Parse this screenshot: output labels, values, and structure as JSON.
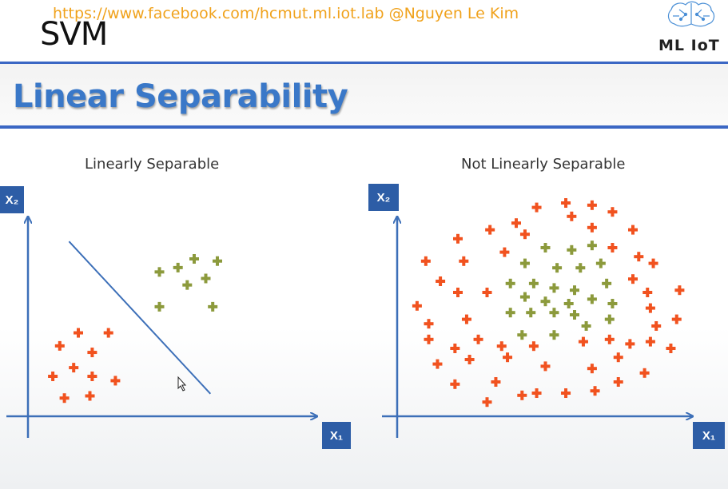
{
  "header": {
    "url_text": "https://www.facebook.com/hcmut.ml.iot.lab @Nguyen Le Kim",
    "section_label": "SVM",
    "logo_text": "ML IoT"
  },
  "slide": {
    "title": "Linear Separability"
  },
  "panels": [
    {
      "title": "Linearly Separable",
      "x_label": "X₁",
      "y_label": "X₂"
    },
    {
      "title": "Not Linearly Separable",
      "x_label": "X₁",
      "y_label": "X₂"
    }
  ],
  "colors": {
    "accent_blue": "#3b67c4",
    "class_a": "#f1521f",
    "class_b": "#8c9a3c"
  },
  "chart_data": [
    {
      "type": "scatter",
      "title": "Linearly Separable",
      "xlabel": "X₁",
      "ylabel": "X₂",
      "series": [
        {
          "name": "",
          "marker": "plus",
          "color": "#f1521f",
          "points": [
            [
              2.0,
              3.8
            ],
            [
              3.3,
              3.8
            ],
            [
              1.2,
              3.2
            ],
            [
              2.6,
              2.9
            ],
            [
              1.8,
              2.2
            ],
            [
              0.9,
              1.8
            ],
            [
              2.6,
              1.8
            ],
            [
              3.6,
              1.6
            ],
            [
              1.4,
              0.8
            ],
            [
              2.5,
              0.9
            ]
          ]
        },
        {
          "name": "",
          "marker": "plus",
          "color": "#8c9a3c",
          "points": [
            [
              5.5,
              6.6
            ],
            [
              6.3,
              6.8
            ],
            [
              7.0,
              7.2
            ],
            [
              8.0,
              7.1
            ],
            [
              6.7,
              6.0
            ],
            [
              7.5,
              6.3
            ],
            [
              5.5,
              5.0
            ],
            [
              7.8,
              5.0
            ]
          ]
        }
      ],
      "separator": [
        [
          1.6,
          8.0
        ],
        [
          7.7,
          1.0
        ]
      ],
      "xlim": [
        0,
        10
      ],
      "ylim": [
        0,
        9
      ]
    },
    {
      "type": "scatter",
      "title": "Not Linearly Separable",
      "xlabel": "X₁",
      "ylabel": "X₂",
      "series": [
        {
          "name": "",
          "marker": "plus",
          "color": "#f1521f",
          "points": [
            [
              4.7,
              9.3
            ],
            [
              5.7,
              9.5
            ],
            [
              6.6,
              9.4
            ],
            [
              7.3,
              9.1
            ],
            [
              4.0,
              8.6
            ],
            [
              5.9,
              8.9
            ],
            [
              6.6,
              8.4
            ],
            [
              3.1,
              8.3
            ],
            [
              4.3,
              8.1
            ],
            [
              8.0,
              8.3
            ],
            [
              2.0,
              7.9
            ],
            [
              3.6,
              7.3
            ],
            [
              7.3,
              7.5
            ],
            [
              8.2,
              7.1
            ],
            [
              0.9,
              6.9
            ],
            [
              2.2,
              6.9
            ],
            [
              8.7,
              6.8
            ],
            [
              1.4,
              6.0
            ],
            [
              2.0,
              5.5
            ],
            [
              3.0,
              5.5
            ],
            [
              8.0,
              6.1
            ],
            [
              8.5,
              5.5
            ],
            [
              9.6,
              5.6
            ],
            [
              0.6,
              4.9
            ],
            [
              1.0,
              4.1
            ],
            [
              2.3,
              4.3
            ],
            [
              8.6,
              4.8
            ],
            [
              8.8,
              4.0
            ],
            [
              9.5,
              4.3
            ],
            [
              1.0,
              3.4
            ],
            [
              1.9,
              3.0
            ],
            [
              2.7,
              3.4
            ],
            [
              3.5,
              3.1
            ],
            [
              4.6,
              3.1
            ],
            [
              6.3,
              3.3
            ],
            [
              7.2,
              3.4
            ],
            [
              7.9,
              3.2
            ],
            [
              8.6,
              3.3
            ],
            [
              9.3,
              3.0
            ],
            [
              1.3,
              2.3
            ],
            [
              2.4,
              2.5
            ],
            [
              3.7,
              2.6
            ],
            [
              5.0,
              2.2
            ],
            [
              6.6,
              2.1
            ],
            [
              7.5,
              2.6
            ],
            [
              8.4,
              1.9
            ],
            [
              1.9,
              1.4
            ],
            [
              3.3,
              1.5
            ],
            [
              4.7,
              1.0
            ],
            [
              5.7,
              1.0
            ],
            [
              6.7,
              1.1
            ],
            [
              7.5,
              1.5
            ],
            [
              3.0,
              0.6
            ],
            [
              4.2,
              0.9
            ]
          ]
        },
        {
          "name": "",
          "marker": "plus",
          "color": "#8c9a3c",
          "points": [
            [
              5.0,
              7.5
            ],
            [
              5.9,
              7.4
            ],
            [
              6.6,
              7.6
            ],
            [
              4.3,
              6.8
            ],
            [
              5.4,
              6.6
            ],
            [
              6.2,
              6.6
            ],
            [
              6.9,
              6.8
            ],
            [
              3.8,
              5.9
            ],
            [
              4.6,
              5.9
            ],
            [
              5.3,
              5.7
            ],
            [
              6.0,
              5.6
            ],
            [
              7.1,
              5.9
            ],
            [
              4.3,
              5.3
            ],
            [
              5.0,
              5.1
            ],
            [
              5.8,
              5.0
            ],
            [
              6.6,
              5.2
            ],
            [
              7.3,
              5.0
            ],
            [
              3.8,
              4.6
            ],
            [
              4.5,
              4.6
            ],
            [
              5.3,
              4.6
            ],
            [
              6.0,
              4.5
            ],
            [
              7.2,
              4.3
            ],
            [
              4.2,
              3.6
            ],
            [
              5.3,
              3.6
            ],
            [
              6.4,
              4.0
            ]
          ]
        }
      ],
      "xlim": [
        0,
        10
      ],
      "ylim": [
        0,
        10
      ]
    }
  ]
}
